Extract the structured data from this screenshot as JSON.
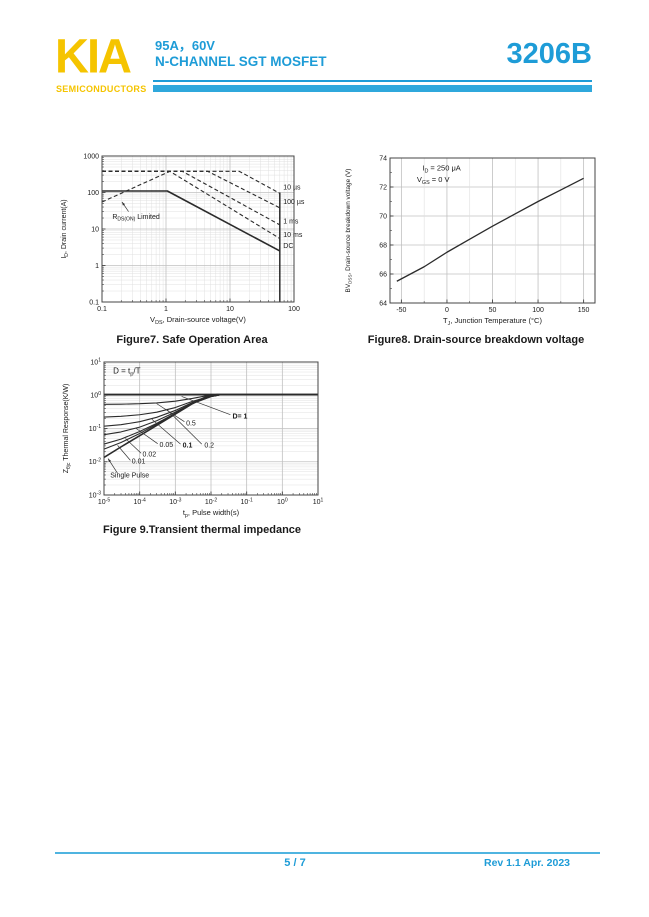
{
  "header": {
    "logo_text": "KIA",
    "logo_subtext": "SEMICONDUCTORS",
    "rating_line": "95A，60V",
    "device_type": "N-CHANNEL SGT MOSFET",
    "part_number": "3206B"
  },
  "footer": {
    "page_indicator": "5 / 7",
    "revision": "Rev 1.1   Apr. 2023"
  },
  "colors": {
    "brand_yellow": "#F5C400",
    "brand_blue": "#1E9CD7",
    "bar_cyan": "#2FA8DC",
    "chart_ink": "#2b2b2b",
    "grid_major": "#c0c0c0",
    "grid_minor": "#e0e0e0"
  },
  "chart_data": [
    {
      "type": "line",
      "caption": "Figure7. Safe Operation Area",
      "xlabel": "V_{DS}, Drain-source voltage(V)",
      "ylabel": "I_{D}, Drain current(A)",
      "x": {
        "scale": "log",
        "min": 0.1,
        "max": 100,
        "ticks": [
          0.1,
          1,
          10,
          100
        ],
        "tick_labels": [
          "0.1",
          "1",
          "10",
          "100"
        ],
        "minor_grid": true
      },
      "y": {
        "scale": "log",
        "min": 0.1,
        "max": 1000,
        "ticks": [
          0.1,
          1,
          10,
          100,
          1000
        ],
        "tick_labels": [
          "0.1",
          "1",
          "10",
          "100",
          "1000"
        ],
        "minor_grid": true
      },
      "series": [
        {
          "name": "10 µs",
          "dash": "4,2.5",
          "width": 1.1,
          "points": [
            [
              0.1,
              380
            ],
            [
              14,
              380
            ],
            [
              60,
              95
            ]
          ]
        },
        {
          "name": "100 µs",
          "dash": "4,2.5",
          "width": 1.1,
          "points": [
            [
              0.1,
              380
            ],
            [
              4.5,
              380
            ],
            [
              60,
              38
            ]
          ]
        },
        {
          "name": "1 ms",
          "dash": "4,2.5",
          "width": 1.1,
          "points": [
            [
              0.1,
              380
            ],
            [
              1.8,
              380
            ],
            [
              60,
              13
            ]
          ]
        },
        {
          "name": "10 ms",
          "dash": "4,2.5",
          "width": 1.1,
          "points": [
            [
              0.1,
              380
            ],
            [
              1.15,
              380
            ],
            [
              60,
              5.5
            ]
          ]
        },
        {
          "name": "DC",
          "dash": null,
          "width": 1.6,
          "points": [
            [
              0.1,
              110
            ],
            [
              1.05,
              110
            ],
            [
              60,
              2.5
            ]
          ]
        },
        {
          "name": "RDS(on) limit line",
          "dash": "4,2.5",
          "width": 1.1,
          "points": [
            [
              0.1,
              55
            ],
            [
              1.15,
              380
            ]
          ]
        },
        {
          "name": "VDS max boundary",
          "dash": null,
          "width": 1.5,
          "points": [
            [
              60,
              0.1
            ],
            [
              60,
              100
            ]
          ]
        }
      ],
      "labels": [
        {
          "text": "10 µs",
          "x": 68,
          "y": 120,
          "size": 7
        },
        {
          "text": "100 µs",
          "x": 68,
          "y": 48,
          "size": 7
        },
        {
          "text": "1 ms",
          "x": 68,
          "y": 14,
          "size": 7
        },
        {
          "text": "10 ms",
          "x": 68,
          "y": 6,
          "size": 7
        },
        {
          "text": "DC",
          "x": 68,
          "y": 3,
          "size": 7
        },
        {
          "text": "R_{DS(ON)} Limited",
          "x": 0.145,
          "y": 19,
          "size": 7
        }
      ],
      "leaders": [
        {
          "from": [
            0.26,
            30
          ],
          "to": [
            0.205,
            55
          ],
          "arrow": true
        }
      ]
    },
    {
      "type": "line",
      "caption": "Figure8. Drain-source breakdown voltage",
      "xlabel": "T_{J}, Junction Temperature (°C)",
      "ylabel": "BV_{DSS}, Drain-source breakdown voltage (V)",
      "x": {
        "scale": "linear",
        "min": -62.5,
        "max": 162.5,
        "ticks": [
          -50,
          0,
          50,
          100,
          150
        ],
        "tick_labels": [
          "-50",
          "0",
          "50",
          "100",
          "150"
        ],
        "grid_step": 25
      },
      "y": {
        "scale": "linear",
        "min": 64,
        "max": 74,
        "ticks": [
          64,
          66,
          68,
          70,
          72,
          74
        ],
        "tick_labels": [
          "64",
          "66",
          "68",
          "70",
          "72",
          "74"
        ],
        "grid_step": 2,
        "minor_tick_step": 1
      },
      "series": [
        {
          "name": "BVDSS vs TJ",
          "dash": null,
          "width": 1.3,
          "points": [
            [
              -55,
              65.5
            ],
            [
              -25,
              66.5
            ],
            [
              0,
              67.5
            ],
            [
              25,
              68.4
            ],
            [
              50,
              69.3
            ],
            [
              75,
              70.15
            ],
            [
              100,
              71.0
            ],
            [
              125,
              71.8
            ],
            [
              150,
              72.6
            ]
          ]
        }
      ],
      "labels": [
        {
          "text": "I_{D} = 250 μA",
          "x": -27,
          "y": 73.15,
          "size": 7.5
        },
        {
          "text": "V_{GS} = 0 V",
          "x": -33,
          "y": 72.35,
          "size": 7.5
        }
      ],
      "leaders": []
    },
    {
      "type": "line",
      "caption": "Figure 9.Transient thermal impedance",
      "xlabel": "t_{p}, Pulse width(s)",
      "ylabel": "Z_{θjc} Thermal Response(K/W)",
      "x": {
        "scale": "log",
        "min": 1e-05,
        "max": 10,
        "ticks": [
          1e-05,
          0.0001,
          0.001,
          0.01,
          0.1,
          1,
          10
        ],
        "tick_labels": [
          "10^{-5}",
          "10^{-4}",
          "10^{-3}",
          "10^{-2}",
          "10^{-1}",
          "10^{0}",
          "10^{1}"
        ],
        "minor_grid": false
      },
      "y": {
        "scale": "log",
        "min": 0.001,
        "max": 10,
        "ticks": [
          0.001,
          0.01,
          0.1,
          1,
          10
        ],
        "tick_labels": [
          "10^{-3}",
          "10^{-2}",
          "10^{-1}",
          "10^{0}",
          "10^{1}"
        ],
        "minor_grid": true
      },
      "series": [
        {
          "name": "D=1",
          "dash": null,
          "width": 1.9,
          "points": [
            [
              1e-05,
              1.05
            ],
            [
              10,
              1.05
            ]
          ]
        },
        {
          "name": "D=0.5",
          "dash": null,
          "width": 1.1,
          "points": [
            [
              1e-05,
              0.532
            ],
            [
              3e-05,
              0.539
            ],
            [
              0.0001,
              0.556
            ],
            [
              0.0003,
              0.587
            ],
            [
              0.001,
              0.661
            ],
            [
              0.003,
              0.8
            ],
            [
              0.008,
              0.98
            ],
            [
              0.015,
              1.05
            ],
            [
              10,
              1.05
            ]
          ]
        },
        {
          "name": "D=0.2",
          "dash": null,
          "width": 1.1,
          "points": [
            [
              1e-05,
              0.221
            ],
            [
              3e-05,
              0.232
            ],
            [
              0.0001,
              0.259
            ],
            [
              0.0003,
              0.309
            ],
            [
              0.001,
              0.427
            ],
            [
              0.003,
              0.654
            ],
            [
              0.01,
              0.95
            ],
            [
              0.02,
              1.05
            ],
            [
              10,
              1.05
            ]
          ]
        },
        {
          "name": "D=0.1",
          "dash": null,
          "width": 1.1,
          "points": [
            [
              1e-05,
              0.117
            ],
            [
              3e-05,
              0.13
            ],
            [
              0.0001,
              0.16
            ],
            [
              0.0003,
              0.217
            ],
            [
              0.001,
              0.349
            ],
            [
              0.003,
              0.604
            ],
            [
              0.01,
              0.93
            ],
            [
              0.02,
              1.05
            ],
            [
              10,
              1.05
            ]
          ]
        },
        {
          "name": "D=0.05",
          "dash": null,
          "width": 1.1,
          "points": [
            [
              1e-05,
              0.065
            ],
            [
              3e-05,
              0.079
            ],
            [
              0.0001,
              0.11
            ],
            [
              0.0003,
              0.171
            ],
            [
              0.001,
              0.311
            ],
            [
              0.003,
              0.58
            ],
            [
              0.01,
              0.92
            ],
            [
              0.02,
              1.05
            ],
            [
              10,
              1.05
            ]
          ]
        },
        {
          "name": "D=0.02",
          "dash": null,
          "width": 1.1,
          "points": [
            [
              1e-05,
              0.034
            ],
            [
              3e-05,
              0.048
            ],
            [
              0.0001,
              0.081
            ],
            [
              0.0003,
              0.143
            ],
            [
              0.001,
              0.287
            ],
            [
              0.003,
              0.565
            ],
            [
              0.01,
              0.91
            ],
            [
              0.02,
              1.05
            ],
            [
              10,
              1.05
            ]
          ]
        },
        {
          "name": "D=0.01",
          "dash": null,
          "width": 1.1,
          "points": [
            [
              1e-05,
              0.024
            ],
            [
              3e-05,
              0.038
            ],
            [
              0.0001,
              0.071
            ],
            [
              0.0003,
              0.134
            ],
            [
              0.001,
              0.279
            ],
            [
              0.003,
              0.56
            ],
            [
              0.01,
              0.91
            ],
            [
              0.02,
              1.05
            ],
            [
              10,
              1.05
            ]
          ]
        },
        {
          "name": "Single Pulse",
          "dash": null,
          "width": 1.6,
          "points": [
            [
              1e-05,
              0.0135
            ],
            [
              3e-05,
              0.028
            ],
            [
              0.0001,
              0.061
            ],
            [
              0.0003,
              0.124
            ],
            [
              0.001,
              0.272
            ],
            [
              0.003,
              0.555
            ],
            [
              0.008,
              0.95
            ],
            [
              0.015,
              1.05
            ],
            [
              10,
              1.05
            ]
          ]
        }
      ],
      "labels": [
        {
          "text": "D = t_{p}/T",
          "x": 1.8e-05,
          "y": 4.5,
          "size": 8
        },
        {
          "text": "D= 1",
          "x": 0.04,
          "y": 0.2,
          "size": 7,
          "bold": true
        },
        {
          "text": "0.5",
          "x": 0.002,
          "y": 0.125,
          "size": 7
        },
        {
          "text": "0.2",
          "x": 0.0065,
          "y": 0.027,
          "size": 7
        },
        {
          "text": "0.1",
          "x": 0.0016,
          "y": 0.027,
          "size": 7,
          "bold": true
        },
        {
          "text": "0.05",
          "x": 0.00036,
          "y": 0.028,
          "size": 7
        },
        {
          "text": "0.02",
          "x": 0.00012,
          "y": 0.0145,
          "size": 7
        },
        {
          "text": "0.01",
          "x": 6e-05,
          "y": 0.009,
          "size": 7
        },
        {
          "text": "Single Pulse",
          "x": 1.5e-05,
          "y": 0.0034,
          "size": 7
        }
      ],
      "leaders": [
        {
          "from": [
            0.035,
            0.26
          ],
          "to": [
            0.0015,
            0.92
          ],
          "arrow": false
        },
        {
          "from": [
            0.0018,
            0.16
          ],
          "to": [
            0.0003,
            0.56
          ],
          "arrow": false
        },
        {
          "from": [
            0.0055,
            0.034
          ],
          "to": [
            0.0006,
            0.36
          ],
          "arrow": false
        },
        {
          "from": [
            0.0014,
            0.034
          ],
          "to": [
            0.00022,
            0.19
          ],
          "arrow": false
        },
        {
          "from": [
            0.00032,
            0.035
          ],
          "to": [
            8e-05,
            0.1
          ],
          "arrow": false
        },
        {
          "from": [
            0.00011,
            0.018
          ],
          "to": [
            4e-05,
            0.05
          ],
          "arrow": false
        },
        {
          "from": [
            5.5e-05,
            0.011
          ],
          "to": [
            2.4e-05,
            0.031
          ],
          "arrow": false
        },
        {
          "from": [
            2.4e-05,
            0.0045
          ],
          "to": [
            1.3e-05,
            0.0125
          ],
          "arrow": true
        }
      ]
    }
  ]
}
